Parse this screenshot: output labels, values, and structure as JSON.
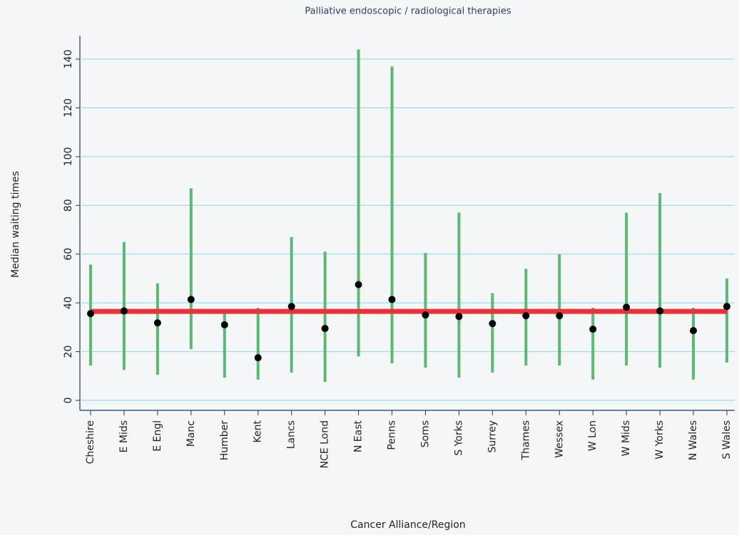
{
  "chart_data": {
    "type": "range",
    "title": "Palliative endoscopic / radiological therapies",
    "x_label": "Cancer Alliance/Region",
    "y_label": "Median waiting times",
    "categories": [
      "Cheshire",
      "E Mids",
      "E Engl",
      "Manc",
      "Humber",
      "Kent",
      "Lancs",
      "NCE Lond",
      "N East",
      "Penns",
      "Soms",
      "S Yorks",
      "Surrey",
      "Thames",
      "Wessex",
      "W Lon",
      "W Mids",
      "W Yorks",
      "N Wales",
      "S Wales"
    ],
    "values": [
      35.6,
      36.7,
      31.8,
      41.4,
      31,
      17.5,
      38.5,
      29.5,
      47.5,
      41.4,
      35,
      34.4,
      31.5,
      34.7,
      34.7,
      29.2,
      38.2,
      36.7,
      28.6,
      38.5
    ],
    "low": [
      14.3,
      12.5,
      10.5,
      21,
      9.3,
      8.5,
      11.4,
      7.6,
      18,
      15.2,
      13.4,
      9.3,
      11.4,
      14.3,
      14.3,
      8.5,
      14.3,
      13.4,
      8.5,
      15.5
    ],
    "high": [
      55.7,
      65,
      48,
      87,
      36,
      38,
      67,
      61,
      144,
      137,
      60.5,
      77,
      44,
      54,
      60,
      38,
      77,
      85,
      38,
      50
    ],
    "reference": 36.5,
    "range_color": "#5cb874",
    "point_color": "#000000",
    "reference_color": "#e8333a",
    "grid_color": "#8fd3ea",
    "ylim": [
      0,
      140
    ],
    "yticks": [
      0,
      20,
      40,
      60,
      80,
      100,
      120,
      140
    ],
    "grid": true
  }
}
